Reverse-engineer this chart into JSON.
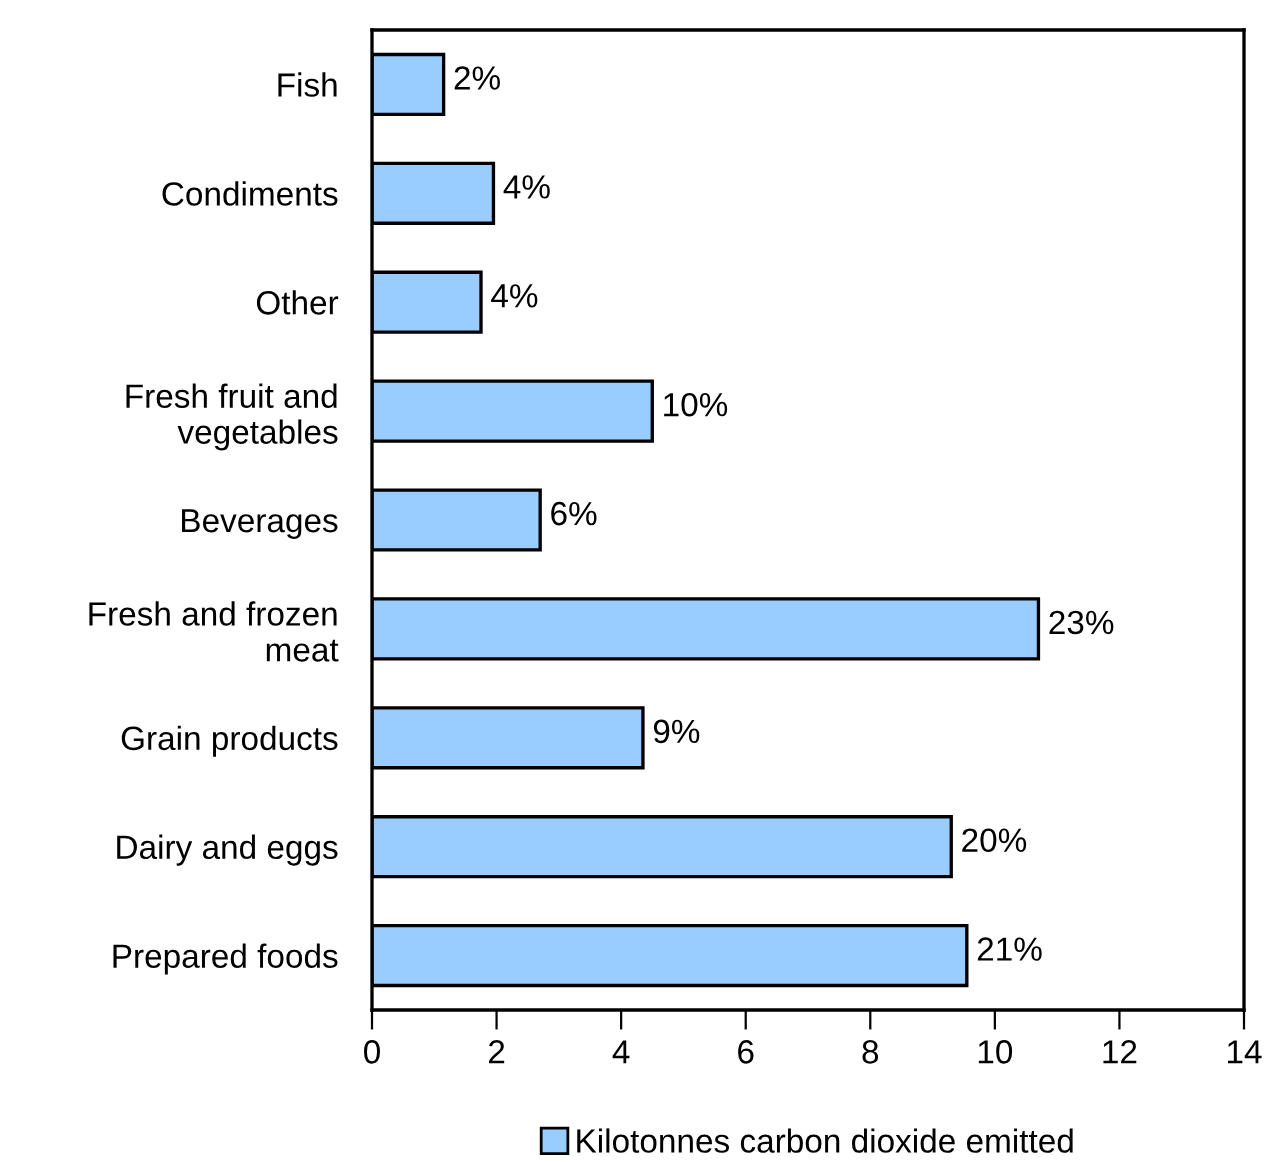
{
  "chart_data": {
    "type": "bar",
    "orientation": "horizontal",
    "categories": [
      "Fish",
      "Condiments",
      "Other",
      "Fresh fruit and\nvegetables",
      "Beverages",
      "Fresh and frozen\nmeat",
      "Grain products",
      "Dairy and eggs",
      "Prepared foods"
    ],
    "series": [
      {
        "name": "Kilotonnes carbon dioxide emitted",
        "color": "#99ccff",
        "values": [
          1.15,
          1.95,
          1.75,
          4.5,
          2.7,
          10.7,
          4.35,
          9.3,
          9.55
        ]
      }
    ],
    "annotations": [
      {
        "text": "2%",
        "x": 1.15,
        "y": "Fish"
      },
      {
        "text": "4%",
        "x": 1.95,
        "y": "Condiments"
      },
      {
        "text": "4%",
        "x": 1.75,
        "y": "Other"
      },
      {
        "text": "10%",
        "x": 4.5,
        "y": "Fresh fruit and\nvegetables"
      },
      {
        "text": "6%",
        "x": 2.7,
        "y": "Beverages"
      },
      {
        "text": "23%",
        "x": 10.7,
        "y": "Fresh and frozen\nmeat"
      },
      {
        "text": "9%",
        "x": 4.35,
        "y": "Grain products"
      },
      {
        "text": "20%",
        "x": 9.3,
        "y": "Dairy and eggs"
      },
      {
        "text": "21%",
        "x": 9.55,
        "y": "Prepared foods"
      }
    ],
    "xlim": [
      0,
      14
    ],
    "xticks": [
      0,
      2,
      4,
      6,
      8,
      10,
      12,
      14
    ],
    "grid": false,
    "legend": "bottom"
  }
}
